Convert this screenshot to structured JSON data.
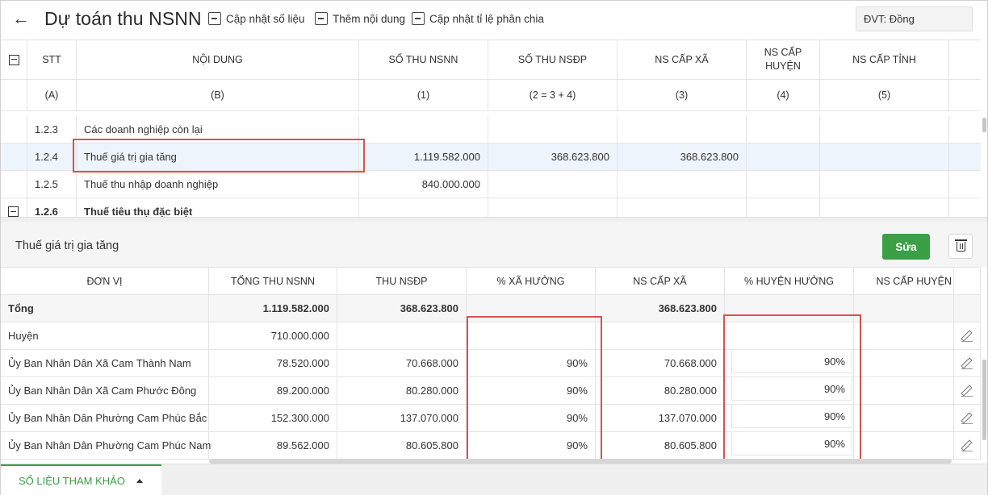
{
  "header": {
    "back_icon": "arrow-left-icon",
    "title": "Dự toán thu NSNN",
    "actions": [
      {
        "label": "Cập nhật số liệu",
        "icon": "calculator-icon"
      },
      {
        "label": "Thêm nội dung",
        "icon": "add-document-icon"
      },
      {
        "label": "Cập nhật tỉ lệ phân chia",
        "icon": "calculator-icon"
      }
    ],
    "unit_label": "ĐVT:",
    "unit_value": "Đồng"
  },
  "top_table": {
    "columns": [
      "STT",
      "NỘI DUNG",
      "SỐ THU NSNN",
      "SỐ THU NSĐP",
      "NS CẤP XÃ",
      "NS CẤP HUYỆN",
      "NS CẤP TỈNH"
    ],
    "subheaders": [
      "(A)",
      "(B)",
      "(1)",
      "(2 = 3 + 4)",
      "(3)",
      "(4)",
      "(5)"
    ],
    "rows": [
      {
        "stt": "1.2.3",
        "content": "Các doanh nghiệp còn lại",
        "nsnn": "",
        "nsdp": "",
        "xa": ""
      },
      {
        "stt": "1.2.4",
        "content": "Thuế giá trị gia tăng",
        "nsnn": "1.119.582.000",
        "nsdp": "368.623.800",
        "xa": "368.623.800"
      },
      {
        "stt": "1.2.5",
        "content": "Thuế thu nhập doanh nghiệp",
        "nsnn": "840.000.000",
        "nsdp": "",
        "xa": ""
      },
      {
        "stt": "1.2.6",
        "content": "Thuế tiêu thụ đặc biệt",
        "nsnn": "",
        "nsdp": "",
        "xa": ""
      }
    ]
  },
  "detail": {
    "title": "Thuế giá trị gia tăng",
    "edit_label": "Sửa",
    "delete_icon": "trash-icon",
    "columns": [
      "ĐƠN VỊ",
      "TỔNG THU NSNN",
      "THU NSĐP",
      "% XÃ HƯỞNG",
      "NS CẤP XÃ",
      "% HUYỆN HƯỞNG",
      "NS CẤP HUYỆN"
    ],
    "rows": [
      {
        "unit": "Tổng",
        "nsnn": "1.119.582.000",
        "nsdp": "368.623.800",
        "pct_xa": "",
        "xa": "368.623.800",
        "pct_huyen": "",
        "huyen": ""
      },
      {
        "unit": "Huyện",
        "nsnn": "710.000.000",
        "nsdp": "",
        "pct_xa": "",
        "xa": "",
        "pct_huyen": "",
        "huyen": ""
      },
      {
        "unit": "Ủy Ban Nhân Dân Xã Cam Thành Nam",
        "nsnn": "78.520.000",
        "nsdp": "70.668.000",
        "pct_xa": "90%",
        "xa": "70.668.000",
        "pct_huyen": "90%",
        "huyen": ""
      },
      {
        "unit": "Ủy Ban Nhân Dân Xã Cam Phước Đông",
        "nsnn": "89.200.000",
        "nsdp": "80.280.000",
        "pct_xa": "90%",
        "xa": "80.280.000",
        "pct_huyen": "90%",
        "huyen": ""
      },
      {
        "unit": "Ủy Ban Nhân Dân Phường Cam Phúc Bắc",
        "nsnn": "152.300.000",
        "nsdp": "137.070.000",
        "pct_xa": "90%",
        "xa": "137.070.000",
        "pct_huyen": "90%",
        "huyen": ""
      },
      {
        "unit": "Ủy Ban Nhân Dân Phường Cam Phúc Nam",
        "nsnn": "89.562.000",
        "nsdp": "80.605.800",
        "pct_xa": "90%",
        "xa": "80.605.800",
        "pct_huyen": "90%",
        "huyen": ""
      }
    ]
  },
  "footer": {
    "tab_label": "SỐ LIỆU THAM KHẢO"
  },
  "colors": {
    "accent": "#3b9f45",
    "highlight": "#d9534f",
    "selected_row": "#eef4fb"
  }
}
